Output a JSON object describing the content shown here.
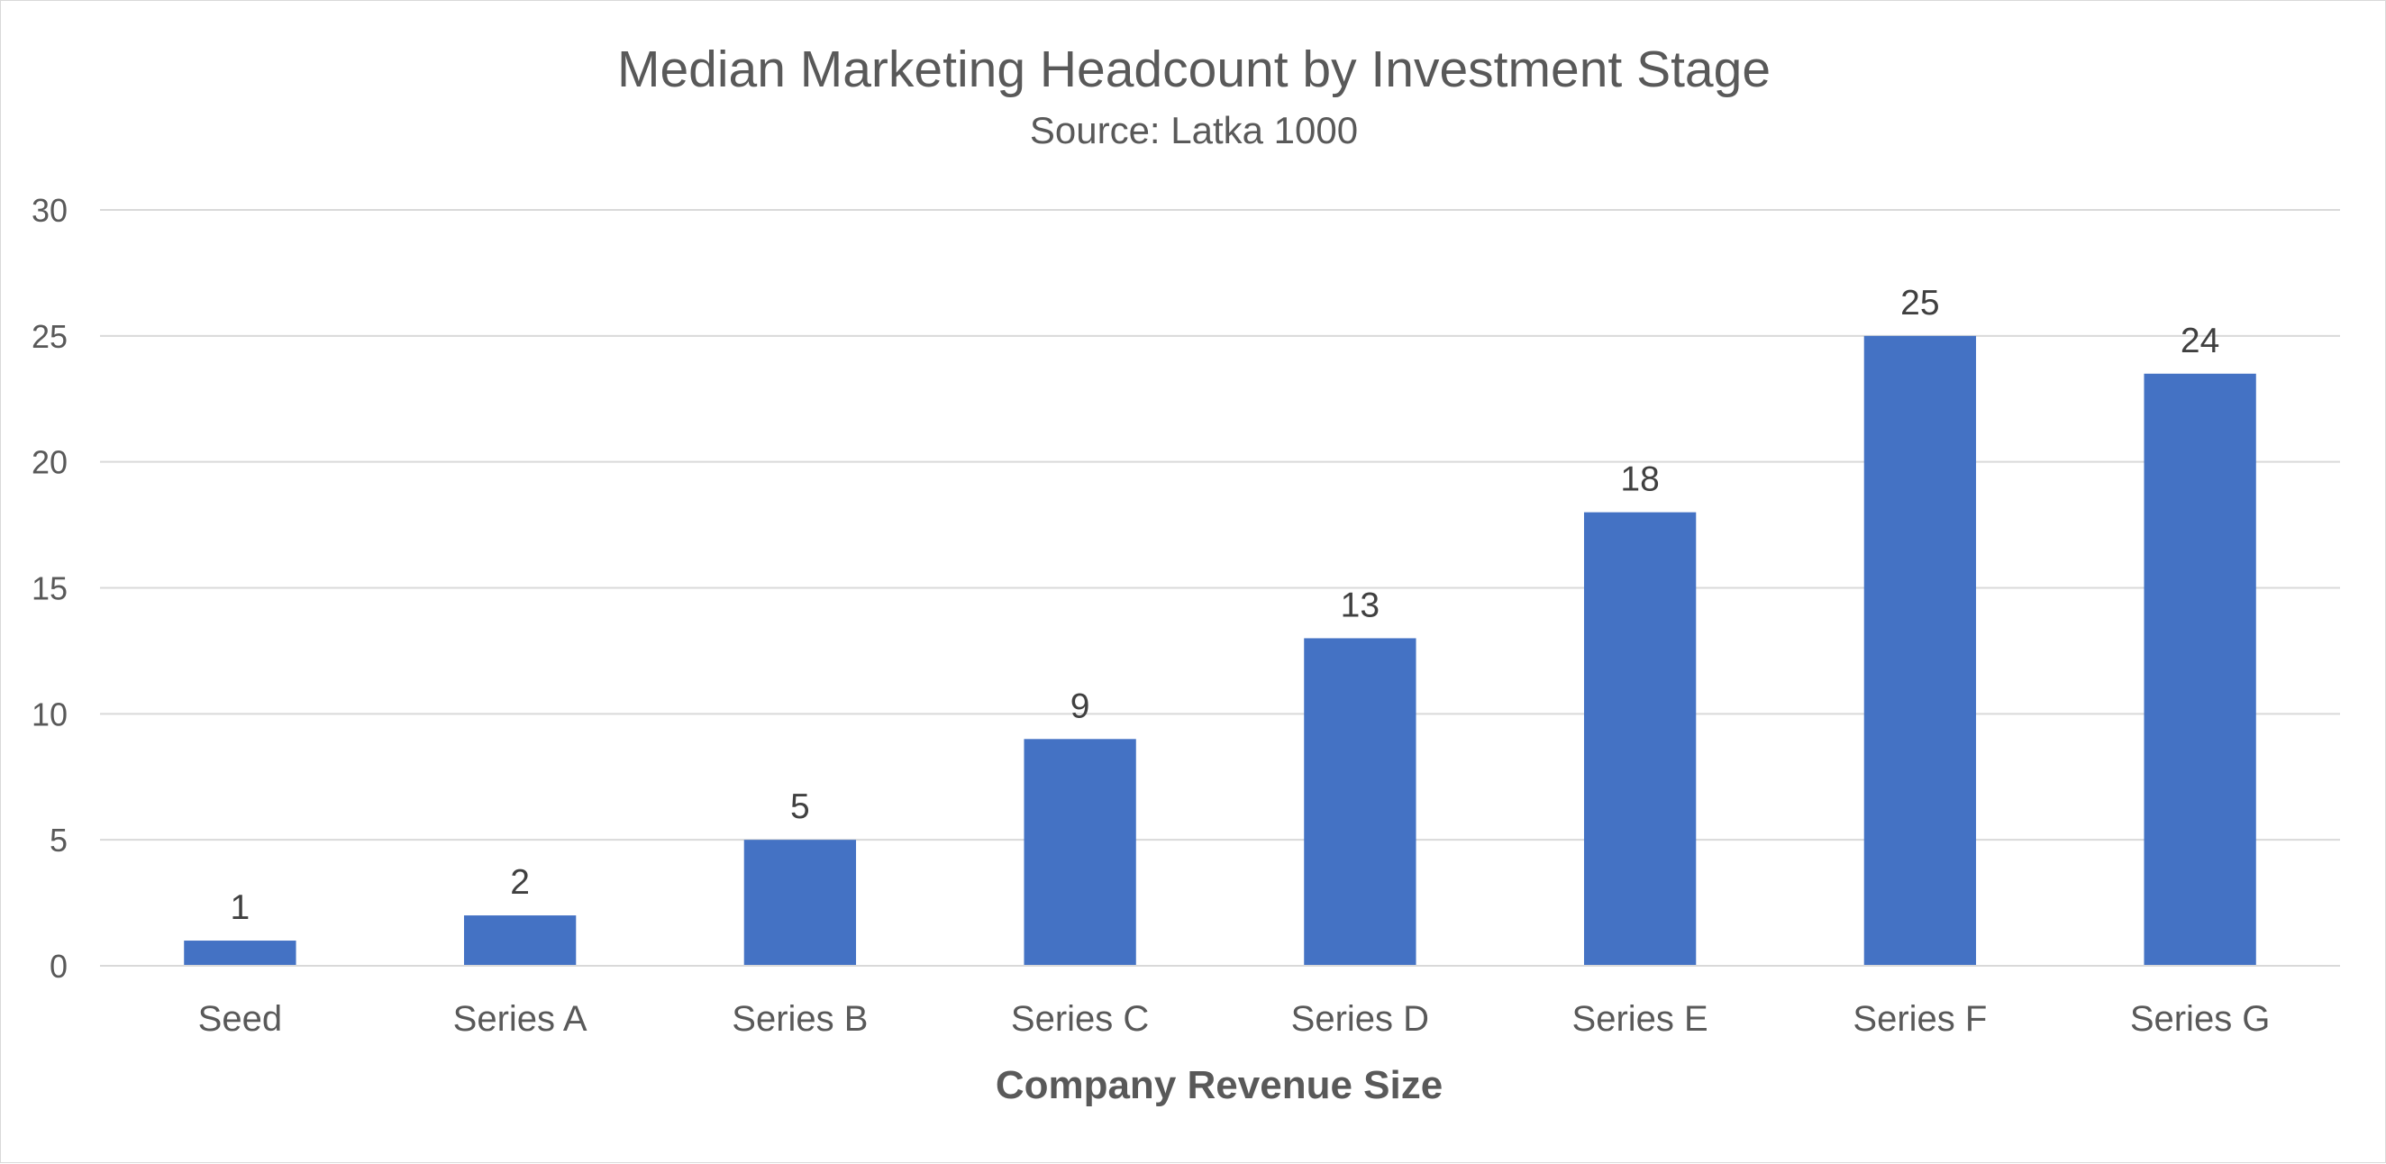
{
  "chart_data": {
    "type": "bar",
    "title": "Median Marketing Headcount by Investment Stage",
    "subtitle": "Source:  Latka 1000",
    "xlabel": "Company Revenue Size",
    "ylabel": "",
    "categories": [
      "Seed",
      "Series A",
      "Series B",
      "Series C",
      "Series D",
      "Series E",
      "Series F",
      "Series G"
    ],
    "values": [
      1,
      2,
      5,
      9,
      13,
      18,
      25,
      23.5
    ],
    "data_labels": [
      "1",
      "2",
      "5",
      "9",
      "13",
      "18",
      "25",
      "24"
    ],
    "ylim": [
      0,
      30
    ],
    "yticks": [
      0,
      5,
      10,
      15,
      20,
      25,
      30
    ],
    "ytick_labels": [
      "0",
      "5",
      "10",
      "15",
      "20",
      "25",
      "30"
    ],
    "grid": true,
    "legend": "none",
    "bar_color": "#4472C4",
    "gridline_color": "#d9d9d9"
  }
}
